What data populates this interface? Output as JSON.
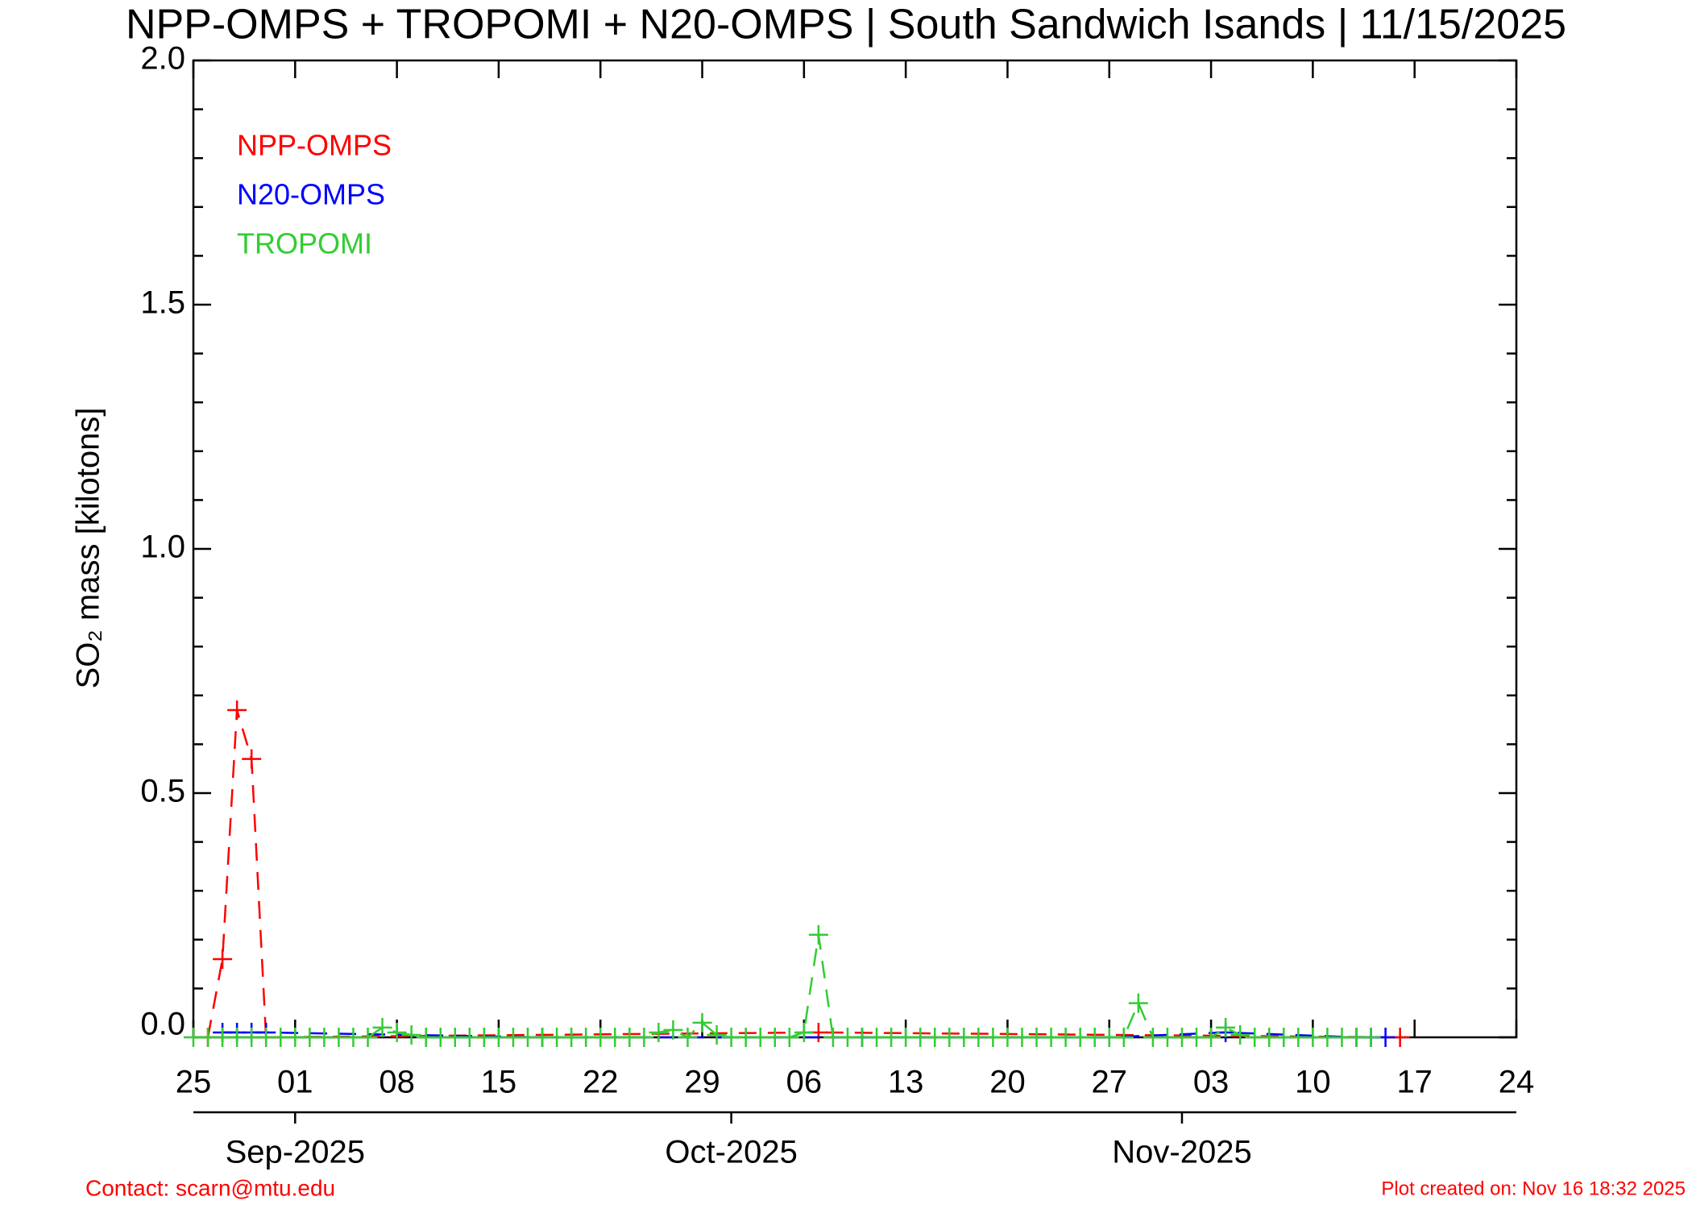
{
  "chart_data": {
    "type": "line",
    "title": "NPP-OMPS + TROPOMI + N20-OMPS | South Sandwich Isands | 11/15/2025",
    "ylabel": "SO₂ mass [kilotons]",
    "xlim": [
      "2025-08-25",
      "2025-11-24"
    ],
    "xticks": [
      {
        "value": "2025-08-25",
        "label": "25"
      },
      {
        "value": "2025-09-01",
        "label": "01"
      },
      {
        "value": "2025-09-08",
        "label": "08"
      },
      {
        "value": "2025-09-15",
        "label": "15"
      },
      {
        "value": "2025-09-22",
        "label": "22"
      },
      {
        "value": "2025-09-29",
        "label": "29"
      },
      {
        "value": "2025-10-06",
        "label": "06"
      },
      {
        "value": "2025-10-13",
        "label": "13"
      },
      {
        "value": "2025-10-20",
        "label": "20"
      },
      {
        "value": "2025-10-27",
        "label": "27"
      },
      {
        "value": "2025-11-03",
        "label": "03"
      },
      {
        "value": "2025-11-10",
        "label": "10"
      },
      {
        "value": "2025-11-17",
        "label": "17"
      },
      {
        "value": "2025-11-24",
        "label": "24"
      }
    ],
    "month_ticks": [
      {
        "value": "2025-09-01",
        "label": "Sep-2025"
      },
      {
        "value": "2025-10-01",
        "label": "Oct-2025"
      },
      {
        "value": "2025-11-01",
        "label": "Nov-2025"
      }
    ],
    "ylim": [
      0,
      2
    ],
    "yticks": [
      {
        "value": 0,
        "label": "0.0"
      },
      0.5,
      {
        "value": 1,
        "label": "1.0"
      },
      1.5,
      {
        "value": 2,
        "label": "2.0"
      }
    ],
    "yticks_minor": [
      0.1,
      0.2,
      0.3,
      0.4,
      0.6,
      0.7,
      0.8,
      0.9,
      1.1,
      1.2,
      1.3,
      1.4,
      1.6,
      1.7,
      1.8,
      1.9
    ],
    "series": [
      {
        "name": "NPP-OMPS",
        "color": "#ff0000",
        "x": [
          "2025-08-26",
          "2025-08-27",
          "2025-08-28",
          "2025-08-29",
          "2025-08-30",
          "2025-10-07",
          "2025-11-16"
        ],
        "values": [
          0,
          0.16,
          0.67,
          0.57,
          0,
          0.01,
          0
        ]
      },
      {
        "name": "N20-OMPS",
        "color": "#0000ff",
        "x": [
          "2025-08-27",
          "2025-08-28",
          "2025-08-29",
          "2025-08-30",
          "2025-09-18",
          "2025-10-10",
          "2025-10-27",
          "2025-11-04",
          "2025-11-13",
          "2025-11-14",
          "2025-11-15"
        ],
        "values": [
          0.01,
          0.01,
          0.01,
          0.01,
          0,
          0,
          0,
          0.01,
          0,
          0,
          0
        ]
      },
      {
        "name": "TROPOMI",
        "color": "#33cc33",
        "x": [
          "2025-08-25",
          "2025-08-26",
          "2025-08-27",
          "2025-08-28",
          "2025-08-29",
          "2025-08-30",
          "2025-08-31",
          "2025-09-01",
          "2025-09-02",
          "2025-09-03",
          "2025-09-04",
          "2025-09-05",
          "2025-09-06",
          "2025-09-07",
          "2025-09-08",
          "2025-09-09",
          "2025-09-10",
          "2025-09-11",
          "2025-09-12",
          "2025-09-13",
          "2025-09-14",
          "2025-09-15",
          "2025-09-16",
          "2025-09-17",
          "2025-09-18",
          "2025-09-19",
          "2025-09-20",
          "2025-09-21",
          "2025-09-22",
          "2025-09-23",
          "2025-09-24",
          "2025-09-25",
          "2025-09-26",
          "2025-09-27",
          "2025-09-28",
          "2025-09-29",
          "2025-09-30",
          "2025-10-01",
          "2025-10-02",
          "2025-10-03",
          "2025-10-04",
          "2025-10-05",
          "2025-10-06",
          "2025-10-07",
          "2025-10-08",
          "2025-10-09",
          "2025-10-10",
          "2025-10-11",
          "2025-10-12",
          "2025-10-13",
          "2025-10-14",
          "2025-10-15",
          "2025-10-16",
          "2025-10-17",
          "2025-10-18",
          "2025-10-19",
          "2025-10-20",
          "2025-10-21",
          "2025-10-22",
          "2025-10-23",
          "2025-10-24",
          "2025-10-25",
          "2025-10-26",
          "2025-10-27",
          "2025-10-28",
          "2025-10-29",
          "2025-10-30",
          "2025-10-31",
          "2025-11-01",
          "2025-11-02",
          "2025-11-03",
          "2025-11-04",
          "2025-11-05",
          "2025-11-06",
          "2025-11-07",
          "2025-11-08",
          "2025-11-09",
          "2025-11-10",
          "2025-11-11",
          "2025-11-12",
          "2025-11-13",
          "2025-11-14"
        ],
        "values": [
          0,
          0,
          0,
          0,
          0,
          0,
          0,
          0,
          0,
          0,
          0,
          0,
          0,
          0.02,
          0.01,
          0.005,
          0,
          0,
          0,
          0,
          0,
          0,
          0,
          0,
          0,
          0,
          0,
          0,
          0,
          0,
          0,
          0,
          0.01,
          0.015,
          0,
          0.03,
          0.005,
          0,
          0,
          0,
          0,
          0,
          0.01,
          0.21,
          0,
          0,
          0,
          0,
          0,
          0,
          0,
          0,
          0,
          0,
          0,
          0,
          0,
          0,
          0,
          0,
          0,
          0,
          0,
          0,
          0,
          0.07,
          0,
          0,
          0,
          0,
          0,
          0.02,
          0.005,
          0,
          0,
          0,
          0,
          0,
          0,
          0,
          0,
          0
        ]
      }
    ],
    "contact": "Contact: scarn@mtu.edu",
    "created": "Plot created on: Nov 16 18:32 2025"
  }
}
